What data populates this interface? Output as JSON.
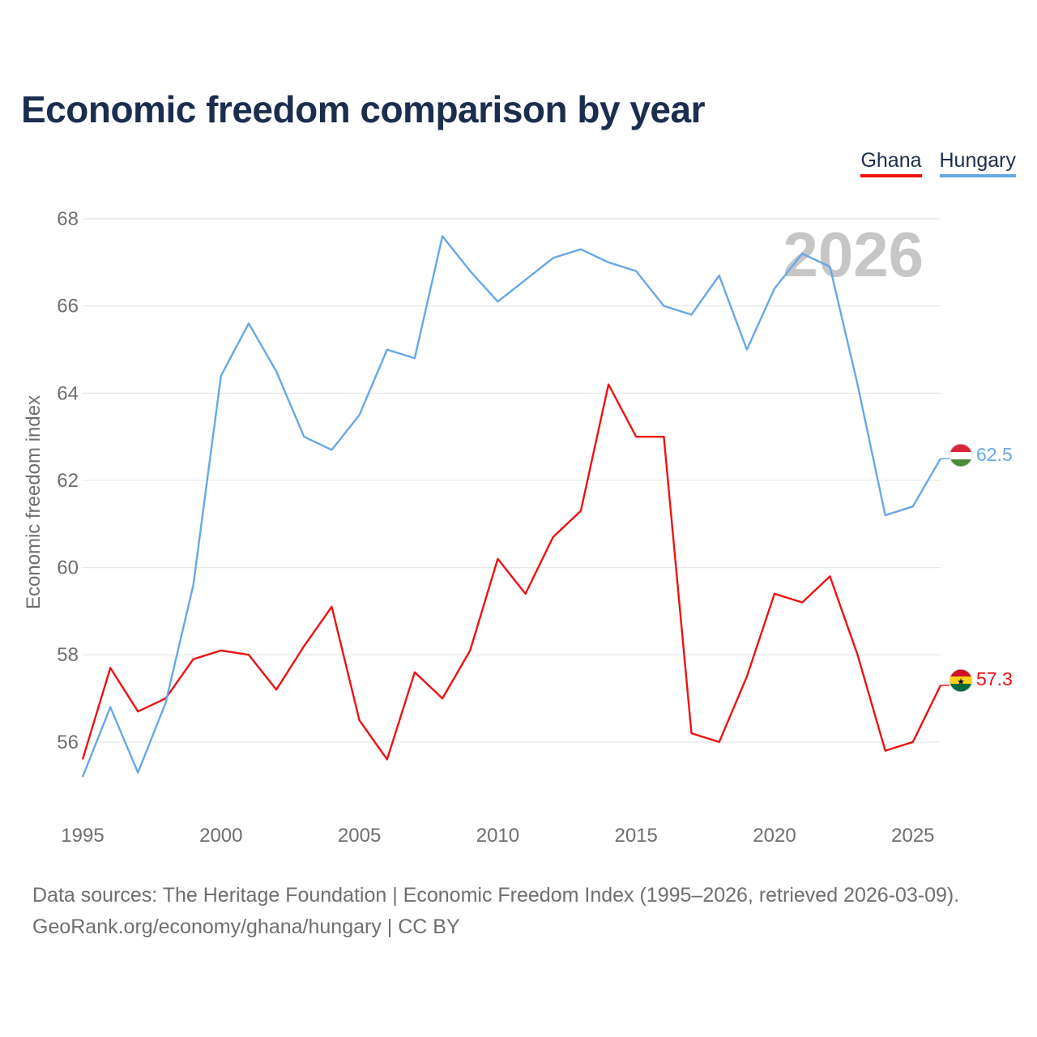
{
  "title": "Economic freedom comparison by year",
  "colors": {
    "Ghana": "#ee1111",
    "Hungary": "#66a8e6",
    "grid": "#e8e8e8",
    "tick": "#6f6f6f",
    "year_watermark": "#c6c6c6"
  },
  "legend": [
    {
      "label": "Ghana",
      "color": "#ee1111"
    },
    {
      "label": "Hungary",
      "color": "#66a8e6"
    }
  ],
  "year_watermark": "2026",
  "footer": {
    "line1": "Data sources: The Heritage Foundation | Economic Freedom Index (1995–2026, retrieved 2026-03-09).",
    "line2": "GeoRank.org/economy/ghana/hungary | CC BY"
  },
  "chart_data": {
    "type": "line",
    "title": "Economic freedom comparison by year",
    "xlabel": "",
    "ylabel": "Economic freedom index",
    "xlim": [
      1995,
      2026
    ],
    "ylim": [
      54.4,
      68
    ],
    "xticks": [
      1995,
      2000,
      2005,
      2010,
      2015,
      2020,
      2025
    ],
    "yticks": [
      56,
      58,
      60,
      62,
      64,
      66,
      68
    ],
    "grid": true,
    "legend_position": "top-right",
    "x": [
      1995,
      1996,
      1997,
      1998,
      1999,
      2000,
      2001,
      2002,
      2003,
      2004,
      2005,
      2006,
      2007,
      2008,
      2009,
      2010,
      2011,
      2012,
      2013,
      2014,
      2015,
      2016,
      2017,
      2018,
      2019,
      2020,
      2021,
      2022,
      2023,
      2024,
      2025,
      2026
    ],
    "series": [
      {
        "name": "Ghana",
        "color": "#ee1111",
        "values": [
          55.6,
          57.7,
          56.7,
          57.0,
          57.9,
          58.1,
          58.0,
          57.2,
          58.2,
          59.1,
          56.5,
          55.6,
          57.6,
          57.0,
          58.1,
          60.2,
          59.4,
          60.7,
          61.3,
          64.2,
          63.0,
          63.0,
          56.2,
          56.0,
          57.5,
          59.4,
          59.2,
          59.8,
          58.0,
          55.8,
          56.0,
          57.3
        ],
        "end_label": "57.3",
        "flag": "ghana"
      },
      {
        "name": "Hungary",
        "color": "#66a8e6",
        "values": [
          55.2,
          56.8,
          55.3,
          56.9,
          59.6,
          64.4,
          65.6,
          64.5,
          63.0,
          62.7,
          63.5,
          65.0,
          64.8,
          67.6,
          66.8,
          66.1,
          66.6,
          67.1,
          67.3,
          67.0,
          66.8,
          66.0,
          65.8,
          66.7,
          65.0,
          66.4,
          67.2,
          66.9,
          64.2,
          61.2,
          61.4,
          62.5
        ],
        "end_label": "62.5",
        "flag": "hungary"
      }
    ]
  }
}
